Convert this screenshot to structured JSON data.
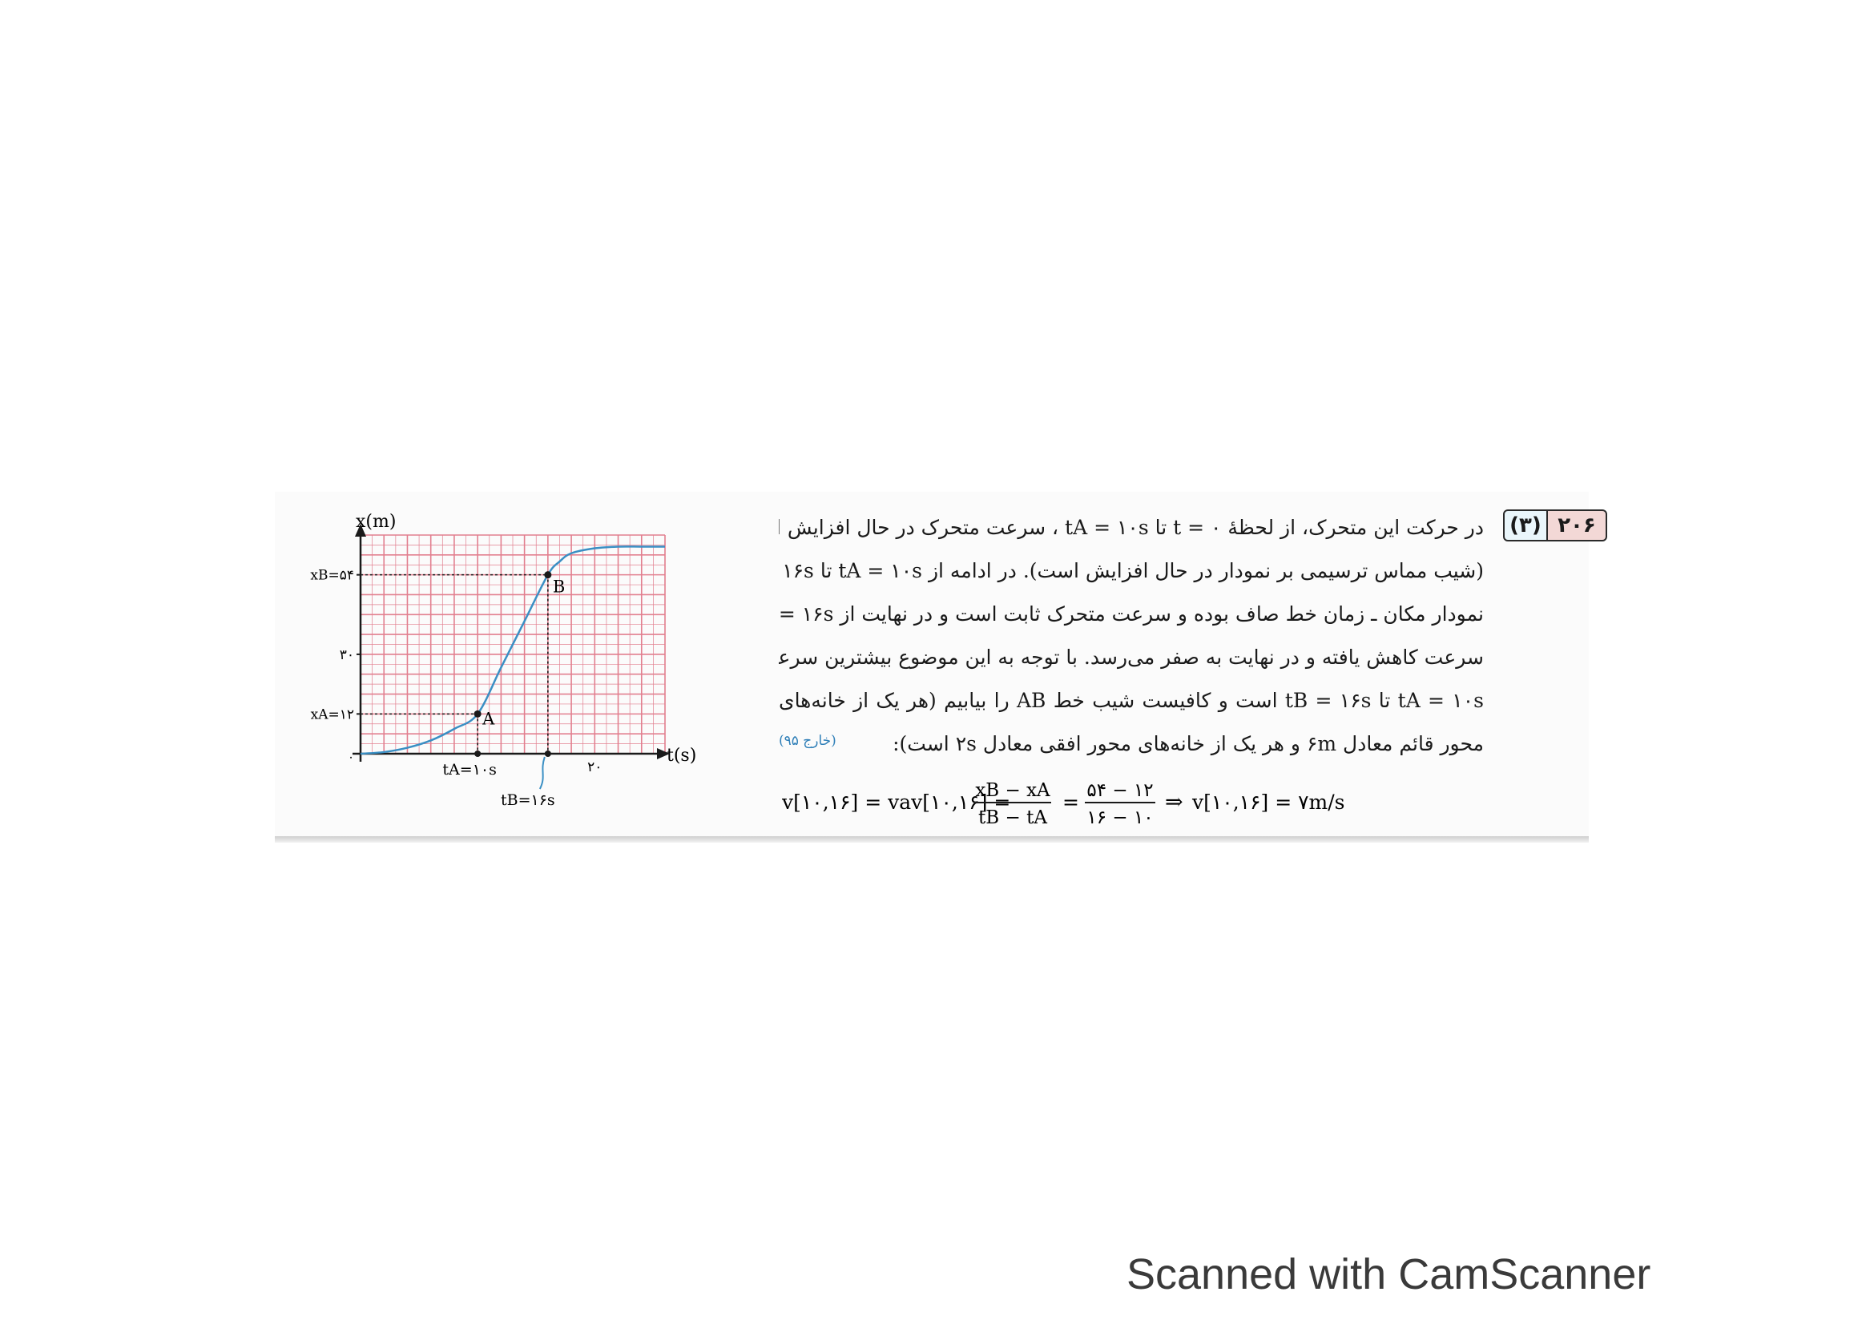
{
  "problem": {
    "number": "۲۰۶",
    "answer": "(۳)",
    "lines": [
      "در حرکت این متحرک، از لحظهٔ t = ۰ تا tA = ۱۰s ، سرعت متحرک در حال افزایش است",
      "(شیب مماس ترسیمی بر نمودار در حال افزایش است). در ادامه از tA = ۱۰s تا tB = ۱۶s",
      "نمودار مکان ـ زمان خط صاف بوده و سرعت متحرک ثابت است و در نهایت از tB = ۱۶s",
      "سرعت کاهش یافته و در نهایت به صفر می‌رسد. با توجه به این موضوع بیشترین سرعت بین",
      "tA = ۱۰s تا tB = ۱۶s است و کافیست شیب خط AB را بیابیم (هر یک از خانه‌های",
      "محور قائم معادل ۶m و هر یک از خانه‌های محور افقی معادل ۲s است):"
    ],
    "reference": "(خارج ۹۵)"
  },
  "formula": {
    "lhs": "v[۱۰,۱۶] = vav[۱۰,۱۶] =",
    "frac1_num": "xB − xA",
    "frac1_den": "tB − tA",
    "frac2_num": "۵۴ − ۱۲",
    "frac2_den": "۱۶ − ۱۰",
    "eq": "=",
    "arrow": "⇒",
    "result": "v[۱۰,۱۶] = ۷m/s"
  },
  "chart": {
    "y_axis_label": "x(m)",
    "x_axis_label": "t(s)",
    "y_ticks": [
      {
        "label": "xB=۵۴",
        "value": 54
      },
      {
        "label": "۳۰",
        "value": 30
      },
      {
        "label": "xA=۱۲",
        "value": 12
      }
    ],
    "x_ticks": [
      {
        "label": "۲۰",
        "value": 20
      }
    ],
    "origin_label": "۰",
    "tA_label": "tA=۱۰s",
    "tB_label": "tB=۱۶s",
    "point_a": "A",
    "point_b": "B",
    "line_color": "#3a8fc4",
    "grid_color": "#e27f8f"
  },
  "chart_data": {
    "type": "line",
    "xlabel": "t(s)",
    "ylabel": "x(m)",
    "xlim": [
      0,
      26
    ],
    "ylim": [
      0,
      66
    ],
    "x": [
      0,
      2,
      4,
      6,
      8,
      10,
      12,
      14,
      16,
      17,
      18,
      20,
      22,
      24,
      26
    ],
    "y": [
      0,
      0.5,
      1.8,
      4,
      7.5,
      12,
      26,
      40,
      54,
      58,
      60.5,
      62,
      62.5,
      62.5,
      62.5
    ],
    "points": [
      {
        "label": "A",
        "t": 10,
        "x": 12
      },
      {
        "label": "B",
        "t": 16,
        "x": 54
      }
    ],
    "grid": true
  },
  "footer": {
    "text": "Scanned with CamScanner"
  }
}
